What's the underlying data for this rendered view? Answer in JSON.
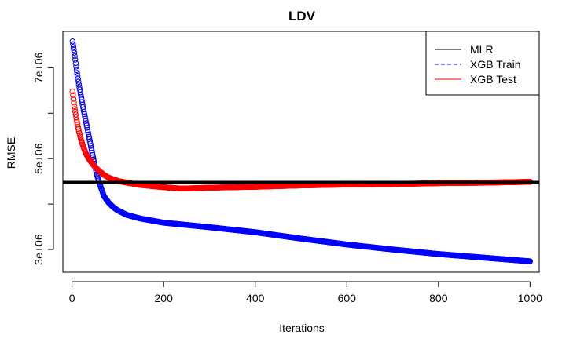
{
  "chart_data": {
    "type": "scatter",
    "title": "LDV",
    "xlabel": "Iterations",
    "ylabel": "RMSE",
    "xlim": [
      -20,
      1020
    ],
    "ylim": [
      2500000,
      7800000
    ],
    "x_ticks": [
      0,
      200,
      400,
      600,
      800,
      1000
    ],
    "x_tick_labels": [
      "0",
      "200",
      "400",
      "600",
      "800",
      "1000"
    ],
    "y_ticks": [
      3000000,
      4000000,
      5000000,
      6000000,
      7000000
    ],
    "y_tick_labels": [
      "3e+06",
      "",
      "5e+06",
      "",
      "7e+06"
    ],
    "legend": {
      "position": "top-right",
      "entries": [
        {
          "label": "MLR",
          "color": "#000000",
          "style": "solid"
        },
        {
          "label": "XGB Train",
          "color": "#0000ff",
          "style": "dashed"
        },
        {
          "label": "XGB Test",
          "color": "#ff0000",
          "style": "solid"
        }
      ]
    },
    "hlines": [
      {
        "name": "MLR",
        "y": 4480000,
        "color": "#000000"
      }
    ],
    "series": [
      {
        "name": "XGB Train",
        "color": "#0000ff",
        "marker": "open-circle",
        "x": [
          1,
          5,
          10,
          15,
          20,
          25,
          30,
          35,
          40,
          45,
          50,
          55,
          60,
          70,
          80,
          90,
          100,
          120,
          150,
          200,
          250,
          300,
          400,
          500,
          600,
          700,
          800,
          900,
          1000
        ],
        "y": [
          7580000,
          7330000,
          6950000,
          6630000,
          6350000,
          6080000,
          5830000,
          5580000,
          5330000,
          5080000,
          4840000,
          4620000,
          4450000,
          4170000,
          4030000,
          3930000,
          3860000,
          3760000,
          3680000,
          3590000,
          3540000,
          3490000,
          3380000,
          3240000,
          3110000,
          3000000,
          2900000,
          2820000,
          2740000
        ]
      },
      {
        "name": "XGB Test",
        "color": "#ff0000",
        "marker": "open-circle",
        "x": [
          1,
          5,
          10,
          15,
          20,
          25,
          30,
          35,
          40,
          50,
          60,
          70,
          80,
          100,
          120,
          150,
          200,
          240,
          300,
          400,
          500,
          600,
          700,
          800,
          900,
          1000
        ],
        "y": [
          6480000,
          6150000,
          5850000,
          5600000,
          5400000,
          5250000,
          5120000,
          5020000,
          4950000,
          4820000,
          4720000,
          4640000,
          4580000,
          4510000,
          4470000,
          4420000,
          4370000,
          4340000,
          4360000,
          4380000,
          4410000,
          4430000,
          4440000,
          4460000,
          4470000,
          4490000
        ]
      }
    ]
  }
}
